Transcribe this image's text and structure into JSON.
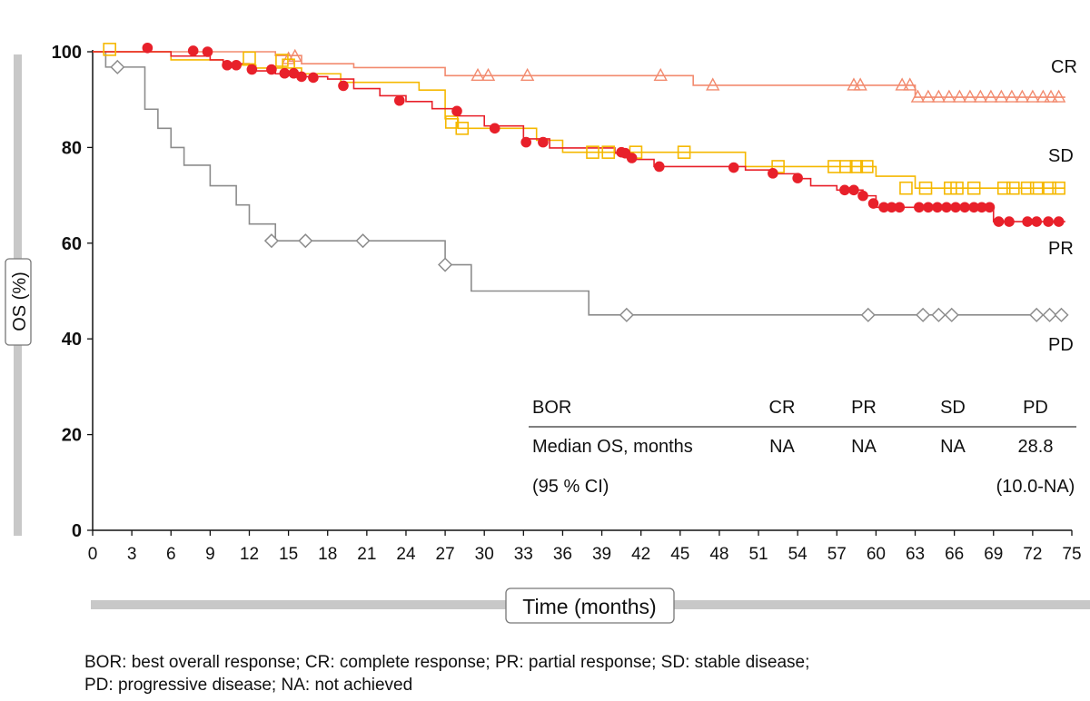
{
  "chart_data": {
    "type": "line",
    "subtype": "kaplan-meier",
    "xlabel": "Time (months)",
    "ylabel": "OS (%)",
    "xlim": [
      0,
      75
    ],
    "ylim": [
      0,
      100
    ],
    "xticks": [
      0,
      3,
      6,
      9,
      12,
      15,
      18,
      21,
      24,
      27,
      30,
      33,
      36,
      39,
      42,
      45,
      48,
      51,
      54,
      57,
      60,
      63,
      66,
      69,
      72,
      75
    ],
    "yticks": [
      0,
      20,
      40,
      60,
      80,
      100
    ],
    "grid": false,
    "series": [
      {
        "name": "CR",
        "color": "#f28a6e",
        "marker": "triangle",
        "steps": [
          [
            0,
            100
          ],
          [
            14,
            99.2
          ],
          [
            16,
            97.5
          ],
          [
            20,
            96.7
          ],
          [
            27,
            95
          ],
          [
            46,
            93
          ],
          [
            63,
            90.5
          ],
          [
            74.5,
            90.5
          ]
        ],
        "censors": [
          [
            15,
            98.5
          ],
          [
            15.5,
            99
          ],
          [
            29.5,
            95
          ],
          [
            30.3,
            95
          ],
          [
            33.3,
            95
          ],
          [
            43.5,
            95
          ],
          [
            47.5,
            93
          ],
          [
            58.3,
            93
          ],
          [
            58.8,
            93
          ],
          [
            62,
            93
          ],
          [
            62.6,
            93
          ],
          [
            63.2,
            90.5
          ],
          [
            64,
            90.5
          ],
          [
            64.8,
            90.5
          ],
          [
            65.6,
            90.5
          ],
          [
            66.4,
            90.5
          ],
          [
            67.2,
            90.5
          ],
          [
            68,
            90.5
          ],
          [
            68.8,
            90.5
          ],
          [
            69.6,
            90.5
          ],
          [
            70.4,
            90.5
          ],
          [
            71.2,
            90.5
          ],
          [
            72,
            90.5
          ],
          [
            72.8,
            90.5
          ],
          [
            73.4,
            90.5
          ],
          [
            74,
            90.5
          ]
        ]
      },
      {
        "name": "SD",
        "color": "#f5b800",
        "marker": "square",
        "steps": [
          [
            0,
            100
          ],
          [
            6,
            98.3
          ],
          [
            10,
            97.2
          ],
          [
            12.5,
            96.6
          ],
          [
            16,
            95.4
          ],
          [
            19,
            93.6
          ],
          [
            25,
            92
          ],
          [
            27,
            86
          ],
          [
            28,
            84
          ],
          [
            34,
            81.5
          ],
          [
            36,
            79
          ],
          [
            41,
            79
          ],
          [
            45,
            79
          ],
          [
            50,
            76
          ],
          [
            57,
            76
          ],
          [
            60,
            74
          ],
          [
            63,
            71.5
          ],
          [
            74.5,
            71.5
          ]
        ],
        "censors": [
          [
            1.3,
            100.5
          ],
          [
            12,
            98.7
          ],
          [
            14.5,
            98.2
          ],
          [
            15,
            97.2
          ],
          [
            27.5,
            85.3
          ],
          [
            28.3,
            84
          ],
          [
            38.3,
            79
          ],
          [
            39.5,
            79
          ],
          [
            41.6,
            79
          ],
          [
            45.3,
            79
          ],
          [
            52.5,
            76
          ],
          [
            56.8,
            76
          ],
          [
            57.7,
            76
          ],
          [
            58.5,
            76
          ],
          [
            59.3,
            76
          ],
          [
            62.3,
            71.5
          ],
          [
            63.8,
            71.5
          ],
          [
            65.7,
            71.5
          ],
          [
            66.2,
            71.5
          ],
          [
            67.5,
            71.5
          ],
          [
            69.8,
            71.5
          ],
          [
            70.5,
            71.5
          ],
          [
            71.6,
            71.5
          ],
          [
            72.3,
            71.5
          ],
          [
            73.3,
            71.5
          ],
          [
            74,
            71.5
          ]
        ]
      },
      {
        "name": "PR",
        "color": "#e8202a",
        "marker": "circle",
        "steps": [
          [
            0,
            100
          ],
          [
            6,
            99.1
          ],
          [
            9,
            98.3
          ],
          [
            10,
            97.5
          ],
          [
            12,
            96
          ],
          [
            14,
            95.4
          ],
          [
            16,
            94.8
          ],
          [
            18,
            94.3
          ],
          [
            20,
            92.3
          ],
          [
            22,
            90.8
          ],
          [
            24,
            89.6
          ],
          [
            26,
            88.1
          ],
          [
            28,
            86.6
          ],
          [
            30,
            84.5
          ],
          [
            33,
            81.8
          ],
          [
            35,
            79.9
          ],
          [
            40,
            78.8
          ],
          [
            41,
            77.5
          ],
          [
            43,
            76
          ],
          [
            50,
            75.3
          ],
          [
            52,
            74.5
          ],
          [
            54,
            73.5
          ],
          [
            55,
            72
          ],
          [
            57,
            71.1
          ],
          [
            59,
            69.9
          ],
          [
            60,
            67.5
          ],
          [
            68,
            67.5
          ],
          [
            69,
            64.5
          ],
          [
            74.5,
            64.5
          ]
        ],
        "points": [
          [
            4.2,
            100.8
          ],
          [
            7.7,
            100.2
          ],
          [
            8.8,
            100
          ],
          [
            10.3,
            97.2
          ],
          [
            11,
            97.2
          ],
          [
            12.2,
            96.3
          ],
          [
            13.7,
            96.3
          ],
          [
            14.7,
            95.5
          ],
          [
            15.4,
            95.5
          ],
          [
            16,
            94.8
          ],
          [
            16.9,
            94.6
          ],
          [
            19.2,
            92.9
          ],
          [
            23.5,
            89.8
          ],
          [
            27.9,
            87.6
          ],
          [
            30.8,
            84
          ],
          [
            33.2,
            81.1
          ],
          [
            34.5,
            81.1
          ],
          [
            40.5,
            79
          ],
          [
            40.8,
            78.8
          ],
          [
            41.3,
            77.8
          ],
          [
            43.4,
            76
          ],
          [
            49.1,
            75.8
          ],
          [
            52.1,
            74.6
          ],
          [
            54,
            73.6
          ],
          [
            57.6,
            71.1
          ],
          [
            58.3,
            71.1
          ],
          [
            59,
            69.9
          ],
          [
            59.8,
            68.3
          ],
          [
            60.6,
            67.5
          ],
          [
            61.2,
            67.5
          ],
          [
            61.8,
            67.5
          ],
          [
            63.3,
            67.5
          ],
          [
            64,
            67.5
          ],
          [
            64.7,
            67.5
          ],
          [
            65.4,
            67.5
          ],
          [
            66.1,
            67.5
          ],
          [
            66.8,
            67.5
          ],
          [
            67.5,
            67.5
          ],
          [
            68.1,
            67.5
          ],
          [
            68.7,
            67.5
          ],
          [
            69.4,
            64.5
          ],
          [
            70.2,
            64.5
          ],
          [
            71.6,
            64.5
          ],
          [
            72.3,
            64.5
          ],
          [
            73.2,
            64.5
          ],
          [
            74,
            64.5
          ]
        ]
      },
      {
        "name": "PD",
        "color": "#8c8c8c",
        "marker": "diamond",
        "steps": [
          [
            0,
            100
          ],
          [
            1,
            96.8
          ],
          [
            3,
            96.8
          ],
          [
            4,
            88
          ],
          [
            5,
            84
          ],
          [
            6,
            80
          ],
          [
            7,
            76.3
          ],
          [
            9,
            72
          ],
          [
            11,
            68
          ],
          [
            12,
            64
          ],
          [
            14,
            60.5
          ],
          [
            27,
            55.5
          ],
          [
            29,
            50
          ],
          [
            38,
            45
          ],
          [
            74.5,
            45
          ]
        ],
        "censors": [
          [
            1.9,
            96.8
          ],
          [
            13.7,
            60.5
          ],
          [
            16.3,
            60.5
          ],
          [
            20.7,
            60.5
          ],
          [
            27,
            55.5
          ],
          [
            40.9,
            45
          ],
          [
            59.4,
            45
          ],
          [
            63.6,
            45
          ],
          [
            64.8,
            45
          ],
          [
            65.8,
            45
          ],
          [
            72.3,
            45
          ],
          [
            73.3,
            45
          ],
          [
            74.2,
            45
          ]
        ]
      }
    ],
    "table": {
      "header": [
        "BOR",
        "CR",
        "PR",
        "SD",
        "PD"
      ],
      "row1": [
        "Median OS, months",
        "NA",
        "NA",
        "NA",
        "28.8"
      ],
      "row2": [
        "(95 % CI)",
        "",
        "",
        "",
        "(10.0-NA)"
      ]
    },
    "footnote": [
      "BOR: best overall response; CR: complete response; PR: partial response; SD: stable disease;",
      "PD: progressive disease; NA: not achieved"
    ]
  }
}
